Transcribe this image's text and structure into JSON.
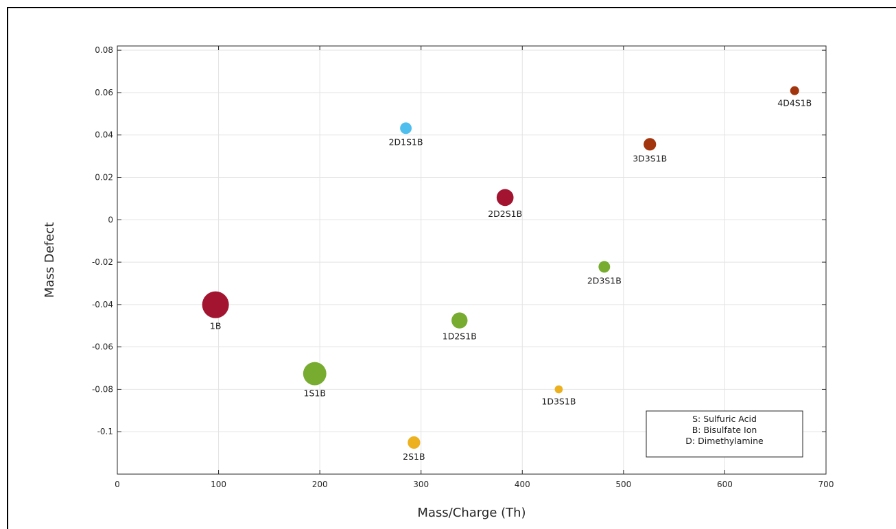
{
  "chart_data": {
    "type": "scatter",
    "title": "",
    "xlabel": "Mass/Charge (Th)",
    "ylabel": "Mass Defect",
    "xlim": [
      0,
      700
    ],
    "ylim": [
      -0.12,
      0.082
    ],
    "x_ticks": [
      0,
      100,
      200,
      300,
      400,
      500,
      600,
      700
    ],
    "x_tick_labels": [
      "0",
      "100",
      "200",
      "300",
      "400",
      "500",
      "600",
      "700"
    ],
    "y_ticks": [
      0.08,
      0.06,
      0.04,
      0.02,
      0,
      -0.02,
      -0.04,
      -0.06,
      -0.08,
      -0.1
    ],
    "y_tick_labels": [
      "0.08",
      "0.06",
      "0.04",
      "0.02",
      "0",
      "-0.02",
      "-0.04",
      "-0.06",
      "-0.08",
      "-0.1"
    ],
    "grid": true,
    "legend_position": "bottom-right",
    "legend_lines": [
      "S: Sulfuric Acid",
      "B: Bisulfate Ion",
      "D: Dimethylamine"
    ],
    "points": [
      {
        "label": "1B",
        "x": 97,
        "y": -0.0401,
        "size": 3.0,
        "color": "#a2142f"
      },
      {
        "label": "1S1B",
        "x": 195,
        "y": -0.0726,
        "size": 2.6,
        "color": "#77ac30"
      },
      {
        "label": "2S1B",
        "x": 293,
        "y": -0.1051,
        "size": 1.4,
        "color": "#edb120"
      },
      {
        "label": "2D1S1B",
        "x": 285,
        "y": 0.0432,
        "size": 1.3,
        "color": "#4dbeee"
      },
      {
        "label": "1D2S1B",
        "x": 338,
        "y": -0.0475,
        "size": 1.8,
        "color": "#77ac30"
      },
      {
        "label": "2D2S1B",
        "x": 383,
        "y": 0.0105,
        "size": 1.9,
        "color": "#a2142f"
      },
      {
        "label": "1D3S1B",
        "x": 436,
        "y": -0.08,
        "size": 0.9,
        "color": "#edb120"
      },
      {
        "label": "2D3S1B",
        "x": 481,
        "y": -0.0222,
        "size": 1.3,
        "color": "#77ac30"
      },
      {
        "label": "3D3S1B",
        "x": 526,
        "y": 0.0356,
        "size": 1.4,
        "color": "#a2350d"
      },
      {
        "label": "4D4S1B",
        "x": 669,
        "y": 0.0609,
        "size": 1.0,
        "color": "#a2350d"
      }
    ]
  }
}
